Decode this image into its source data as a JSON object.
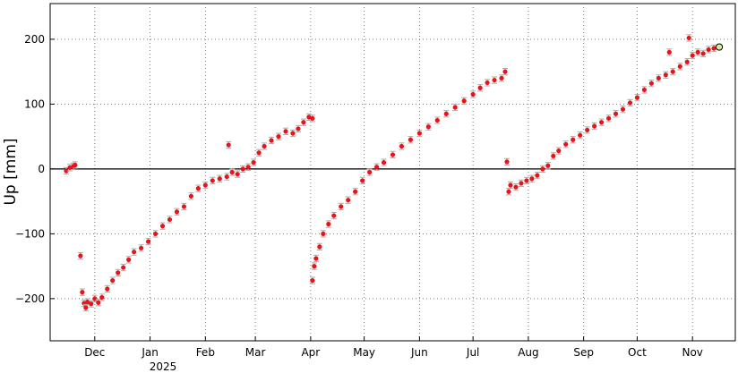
{
  "chart_data": {
    "type": "scatter",
    "ylabel": "Up [mm]",
    "ylim": [
      -265,
      255
    ],
    "yticks": [
      -200,
      -100,
      0,
      100,
      200
    ],
    "xlim": [
      "2024-11-06",
      "2025-11-25"
    ],
    "x_ticks": [
      {
        "date": "2024-12-01",
        "label": "Dec"
      },
      {
        "date": "2025-01-01",
        "label": "Jan"
      },
      {
        "date": "2025-02-01",
        "label": "Feb"
      },
      {
        "date": "2025-03-01",
        "label": "Mar"
      },
      {
        "date": "2025-04-01",
        "label": "Apr"
      },
      {
        "date": "2025-05-01",
        "label": "May"
      },
      {
        "date": "2025-06-01",
        "label": "Jun"
      },
      {
        "date": "2025-07-01",
        "label": "Jul"
      },
      {
        "date": "2025-08-01",
        "label": "Aug"
      },
      {
        "date": "2025-09-01",
        "label": "Sep"
      },
      {
        "date": "2025-10-01",
        "label": "Oct"
      },
      {
        "date": "2025-11-01",
        "label": "Nov"
      }
    ],
    "year_label": "2025",
    "grid": true,
    "zero_line": true,
    "colors": {
      "points": "#e8141c",
      "errorbars": "#aaaaaa",
      "last_point": "#c8f0a0"
    },
    "series": [
      {
        "error_mm": 5,
        "points": [
          {
            "x": "2024-11-15",
            "y": -3
          },
          {
            "x": "2024-11-17",
            "y": 2
          },
          {
            "x": "2024-11-19",
            "y": 4
          },
          {
            "x": "2024-11-20",
            "y": 6
          },
          {
            "x": "2024-11-23",
            "y": -134
          },
          {
            "x": "2024-11-24",
            "y": -190
          },
          {
            "x": "2024-11-25",
            "y": -207
          },
          {
            "x": "2024-11-26",
            "y": -214
          },
          {
            "x": "2024-11-27",
            "y": -205
          },
          {
            "x": "2024-11-29",
            "y": -208
          },
          {
            "x": "2024-12-01",
            "y": -200
          },
          {
            "x": "2024-12-03",
            "y": -206
          },
          {
            "x": "2024-12-05",
            "y": -198
          },
          {
            "x": "2024-12-08",
            "y": -185
          },
          {
            "x": "2024-12-11",
            "y": -172
          },
          {
            "x": "2024-12-14",
            "y": -160
          },
          {
            "x": "2024-12-17",
            "y": -152
          },
          {
            "x": "2024-12-20",
            "y": -140
          },
          {
            "x": "2024-12-23",
            "y": -128
          },
          {
            "x": "2024-12-27",
            "y": -122
          },
          {
            "x": "2024-12-31",
            "y": -112
          },
          {
            "x": "2025-01-04",
            "y": -100
          },
          {
            "x": "2025-01-08",
            "y": -88
          },
          {
            "x": "2025-01-12",
            "y": -78
          },
          {
            "x": "2025-01-16",
            "y": -66
          },
          {
            "x": "2025-01-20",
            "y": -58
          },
          {
            "x": "2025-01-24",
            "y": -42
          },
          {
            "x": "2025-01-28",
            "y": -30
          },
          {
            "x": "2025-02-01",
            "y": -25
          },
          {
            "x": "2025-02-05",
            "y": -18
          },
          {
            "x": "2025-02-09",
            "y": -15
          },
          {
            "x": "2025-02-13",
            "y": -12
          },
          {
            "x": "2025-02-16",
            "y": -5
          },
          {
            "x": "2025-02-19",
            "y": -8
          },
          {
            "x": "2025-02-22",
            "y": 0
          },
          {
            "x": "2025-02-25",
            "y": 3
          },
          {
            "x": "2025-02-28",
            "y": 10
          },
          {
            "x": "2025-02-14",
            "y": 37
          },
          {
            "x": "2025-03-03",
            "y": 25
          },
          {
            "x": "2025-03-06",
            "y": 35
          },
          {
            "x": "2025-03-10",
            "y": 44
          },
          {
            "x": "2025-03-14",
            "y": 50
          },
          {
            "x": "2025-03-18",
            "y": 58
          },
          {
            "x": "2025-03-22",
            "y": 55
          },
          {
            "x": "2025-03-25",
            "y": 62
          },
          {
            "x": "2025-03-28",
            "y": 72
          },
          {
            "x": "2025-03-31",
            "y": 80
          },
          {
            "x": "2025-04-02",
            "y": 78
          }
        ]
      },
      {
        "error_mm": 5,
        "points": [
          {
            "x": "2025-04-02",
            "y": -172
          },
          {
            "x": "2025-04-03",
            "y": -150
          },
          {
            "x": "2025-04-04",
            "y": -138
          },
          {
            "x": "2025-04-06",
            "y": -120
          },
          {
            "x": "2025-04-08",
            "y": -100
          },
          {
            "x": "2025-04-11",
            "y": -85
          },
          {
            "x": "2025-04-14",
            "y": -72
          },
          {
            "x": "2025-04-18",
            "y": -58
          },
          {
            "x": "2025-04-22",
            "y": -48
          },
          {
            "x": "2025-04-26",
            "y": -35
          },
          {
            "x": "2025-04-30",
            "y": -18
          },
          {
            "x": "2025-05-04",
            "y": -5
          },
          {
            "x": "2025-05-08",
            "y": 3
          },
          {
            "x": "2025-05-12",
            "y": 10
          },
          {
            "x": "2025-05-17",
            "y": 22
          },
          {
            "x": "2025-05-22",
            "y": 35
          },
          {
            "x": "2025-05-27",
            "y": 45
          },
          {
            "x": "2025-06-01",
            "y": 55
          },
          {
            "x": "2025-06-06",
            "y": 65
          },
          {
            "x": "2025-06-11",
            "y": 75
          },
          {
            "x": "2025-06-16",
            "y": 85
          },
          {
            "x": "2025-06-21",
            "y": 95
          },
          {
            "x": "2025-06-26",
            "y": 105
          },
          {
            "x": "2025-07-01",
            "y": 115
          },
          {
            "x": "2025-07-05",
            "y": 125
          },
          {
            "x": "2025-07-09",
            "y": 133
          },
          {
            "x": "2025-07-13",
            "y": 137
          },
          {
            "x": "2025-07-17",
            "y": 140
          },
          {
            "x": "2025-07-19",
            "y": 150
          }
        ]
      },
      {
        "error_mm": 5,
        "points": [
          {
            "x": "2025-07-20",
            "y": 11
          },
          {
            "x": "2025-07-21",
            "y": -35
          },
          {
            "x": "2025-07-22",
            "y": -25
          },
          {
            "x": "2025-07-25",
            "y": -28
          },
          {
            "x": "2025-07-28",
            "y": -22
          },
          {
            "x": "2025-07-31",
            "y": -18
          },
          {
            "x": "2025-08-03",
            "y": -15
          },
          {
            "x": "2025-08-06",
            "y": -10
          },
          {
            "x": "2025-08-09",
            "y": 0
          },
          {
            "x": "2025-08-12",
            "y": 5
          },
          {
            "x": "2025-08-15",
            "y": 20
          },
          {
            "x": "2025-08-18",
            "y": 28
          },
          {
            "x": "2025-08-22",
            "y": 38
          },
          {
            "x": "2025-08-26",
            "y": 45
          },
          {
            "x": "2025-08-30",
            "y": 52
          },
          {
            "x": "2025-09-03",
            "y": 60
          },
          {
            "x": "2025-09-07",
            "y": 66
          },
          {
            "x": "2025-09-11",
            "y": 72
          },
          {
            "x": "2025-09-15",
            "y": 78
          },
          {
            "x": "2025-09-19",
            "y": 85
          },
          {
            "x": "2025-09-23",
            "y": 92
          },
          {
            "x": "2025-09-27",
            "y": 102
          },
          {
            "x": "2025-10-01",
            "y": 110
          },
          {
            "x": "2025-10-05",
            "y": 122
          },
          {
            "x": "2025-10-09",
            "y": 132
          },
          {
            "x": "2025-10-13",
            "y": 140
          },
          {
            "x": "2025-10-17",
            "y": 145
          },
          {
            "x": "2025-10-21",
            "y": 150
          },
          {
            "x": "2025-10-25",
            "y": 158
          },
          {
            "x": "2025-10-29",
            "y": 165
          },
          {
            "x": "2025-11-01",
            "y": 175
          },
          {
            "x": "2025-11-04",
            "y": 180
          },
          {
            "x": "2025-11-07",
            "y": 178
          },
          {
            "x": "2025-11-10",
            "y": 184
          },
          {
            "x": "2025-11-13",
            "y": 186
          },
          {
            "x": "2025-10-19",
            "y": 180
          },
          {
            "x": "2025-10-30",
            "y": 202
          }
        ]
      }
    ],
    "last_point": {
      "x": "2025-11-16",
      "y": 188
    }
  }
}
